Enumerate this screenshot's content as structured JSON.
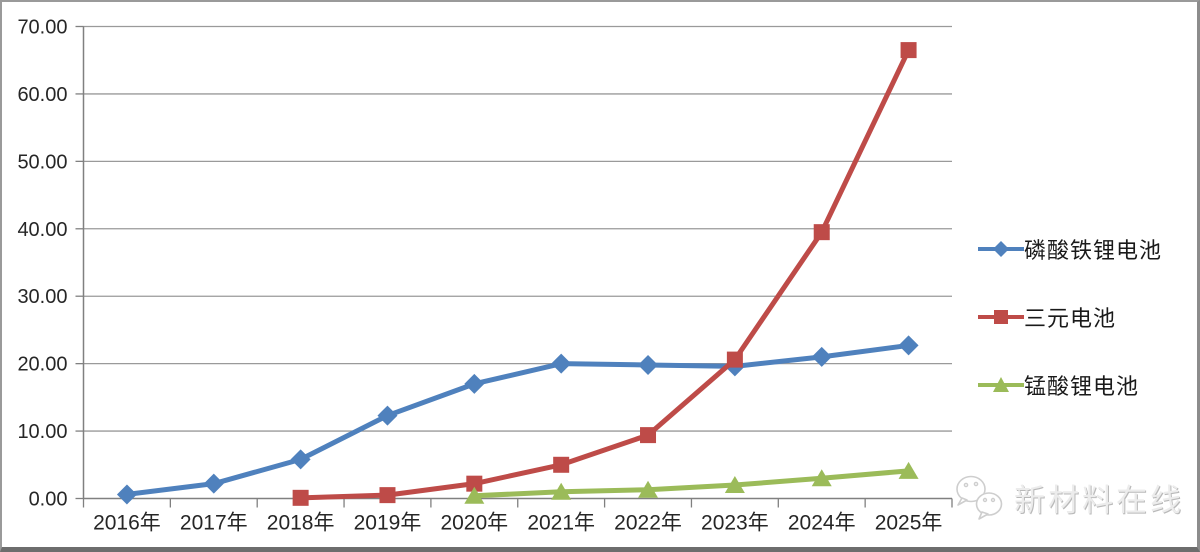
{
  "chart_data": {
    "type": "line",
    "categories": [
      "2016年",
      "2017年",
      "2018年",
      "2019年",
      "2020年",
      "2021年",
      "2022年",
      "2023年",
      "2024年",
      "2025年"
    ],
    "series": [
      {
        "id": "lfp",
        "name": "磷酸铁锂电池",
        "marker": "diamond",
        "color": "#4F81BD",
        "values": [
          0.6,
          2.2,
          5.8,
          12.3,
          17.0,
          20.0,
          19.8,
          19.6,
          21.0,
          22.7
        ]
      },
      {
        "id": "ternary",
        "name": "三元电池",
        "marker": "square",
        "color": "#BE4B48",
        "values": [
          null,
          null,
          0.1,
          0.5,
          2.2,
          5.0,
          9.4,
          20.6,
          39.5,
          66.5
        ]
      },
      {
        "id": "lmo",
        "name": "锰酸锂电池",
        "marker": "triangle",
        "color": "#9BBB59",
        "values": [
          null,
          null,
          null,
          null,
          0.4,
          1.0,
          1.3,
          2.0,
          3.0,
          4.1
        ]
      }
    ],
    "title": "",
    "xlabel": "",
    "ylabel": "",
    "ylim": [
      0,
      70
    ],
    "ytick_step": 10,
    "ytick_labels": [
      "0.00",
      "10.00",
      "20.00",
      "30.00",
      "40.00",
      "50.00",
      "60.00",
      "70.00"
    ],
    "grid": true,
    "legend_position": "right"
  },
  "colors": {
    "gridline": "#9a9a9a",
    "axis": "#808080",
    "label_text": "#262626",
    "frame_border": "#8c8c8c"
  },
  "watermark": {
    "text": "新材料在线",
    "icon": "wechat-icon"
  }
}
